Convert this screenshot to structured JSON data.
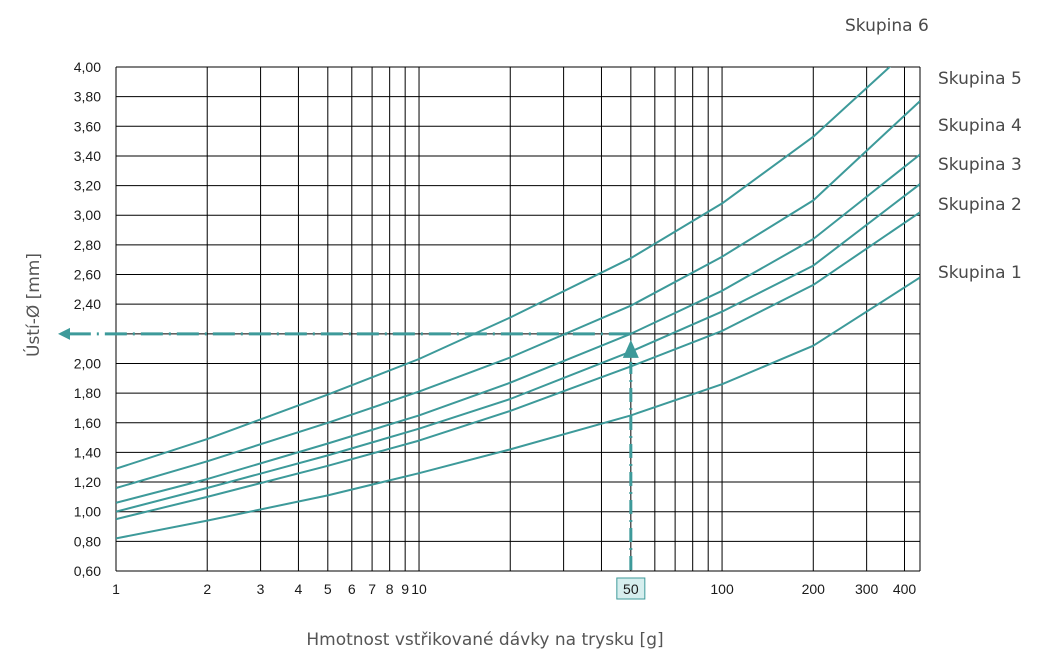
{
  "chart_data": {
    "type": "line",
    "title": "",
    "xlabel": "Hmotnost vstřikované dávky na trysku [g]",
    "ylabel": "Ústí-Ø [mm]",
    "x_scale": "log",
    "xlim": [
      1,
      450
    ],
    "ylim": [
      0.6,
      4.0
    ],
    "grid": true,
    "x_tick_labels": [
      {
        "value": 1,
        "label": "1"
      },
      {
        "value": 2,
        "label": "2"
      },
      {
        "value": 3,
        "label": "3"
      },
      {
        "value": 4,
        "label": "4"
      },
      {
        "value": 5,
        "label": "5"
      },
      {
        "value": 6,
        "label": "6"
      },
      {
        "value": 7,
        "label": "7"
      },
      {
        "value": 8,
        "label": "8"
      },
      {
        "value": 9,
        "label": "9"
      },
      {
        "value": 10,
        "label": "10"
      },
      {
        "value": 50,
        "label": "50"
      },
      {
        "value": 100,
        "label": "100"
      },
      {
        "value": 200,
        "label": "200"
      },
      {
        "value": 300,
        "label": "300"
      },
      {
        "value": 400,
        "label": "400"
      }
    ],
    "x_gridlines": [
      1,
      2,
      3,
      4,
      5,
      6,
      7,
      8,
      9,
      10,
      20,
      30,
      40,
      50,
      60,
      70,
      80,
      90,
      100,
      200,
      300,
      400
    ],
    "y_ticks": [
      0.6,
      0.8,
      1.0,
      1.2,
      1.4,
      1.6,
      1.8,
      2.0,
      2.2,
      2.4,
      2.6,
      2.8,
      3.0,
      3.2,
      3.4,
      3.6,
      3.8,
      4.0
    ],
    "y_tick_labels": [
      "0,60",
      "0,80",
      "1,00",
      "1,20",
      "1,40",
      "1,60",
      "1,80",
      "2,00",
      "",
      "2,40",
      "2,60",
      "2,80",
      "3,00",
      "3,20",
      "3,40",
      "3,60",
      "3,80",
      "4,00"
    ],
    "series_color": "#3d9a9a",
    "series": [
      {
        "name": "Skupina 1",
        "x": [
          1,
          2,
          5,
          10,
          20,
          50,
          100,
          200,
          450
        ],
        "y": [
          0.82,
          0.94,
          1.11,
          1.26,
          1.42,
          1.65,
          1.86,
          2.12,
          2.58
        ]
      },
      {
        "name": "Skupina 2",
        "x": [
          1,
          2,
          5,
          10,
          20,
          50,
          100,
          200,
          450
        ],
        "y": [
          0.95,
          1.1,
          1.31,
          1.48,
          1.68,
          1.98,
          2.22,
          2.53,
          3.02
        ]
      },
      {
        "name": "Skupina 3",
        "x": [
          1,
          2,
          5,
          10,
          20,
          50,
          100,
          200,
          450
        ],
        "y": [
          1.0,
          1.16,
          1.38,
          1.56,
          1.76,
          2.08,
          2.35,
          2.66,
          3.21
        ]
      },
      {
        "name": "Skupina 4",
        "x": [
          1,
          2,
          5,
          10,
          20,
          50,
          100,
          200,
          450
        ],
        "y": [
          1.06,
          1.22,
          1.46,
          1.65,
          1.87,
          2.2,
          2.49,
          2.84,
          3.41
        ]
      },
      {
        "name": "Skupina 5",
        "x": [
          1,
          2,
          5,
          10,
          20,
          50,
          100,
          200,
          450
        ],
        "y": [
          1.16,
          1.34,
          1.6,
          1.81,
          2.04,
          2.39,
          2.72,
          3.1,
          3.77
        ]
      },
      {
        "name": "Skupina 6",
        "x": [
          1,
          2,
          5,
          10,
          20,
          50,
          100,
          200,
          380
        ],
        "y": [
          1.29,
          1.49,
          1.79,
          2.03,
          2.31,
          2.71,
          3.08,
          3.53,
          4.05
        ]
      }
    ],
    "annotation": {
      "x_value": 50,
      "x_label": "50",
      "y_value": 2.2,
      "color": "#3d9a9a",
      "x_label_fill": "#d6eeee"
    }
  }
}
